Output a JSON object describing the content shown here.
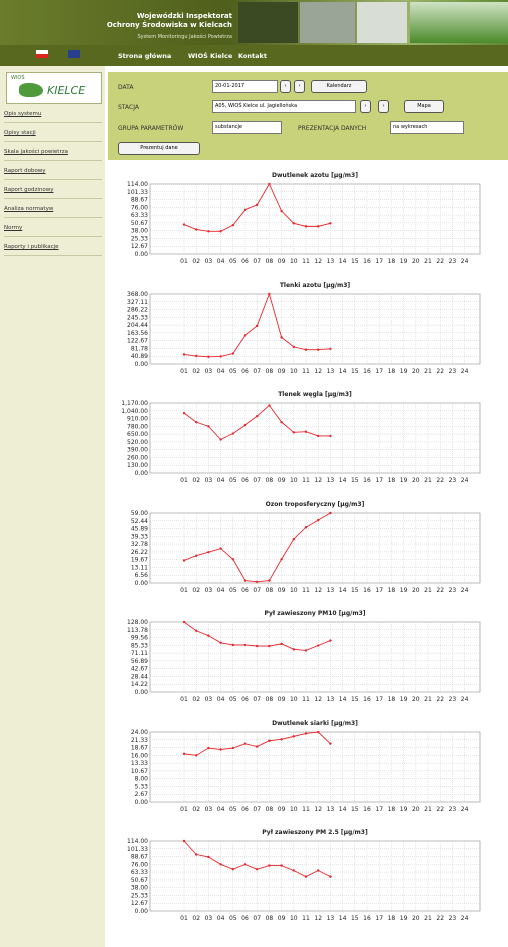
{
  "header": {
    "line1": "Wojewódzki Inspektorat",
    "line2": "Ochrony Środowiska w Kielcach",
    "line3": "System Monitoringu Jakości Powietrza"
  },
  "nav": [
    "Strona główna",
    "WIOŚ Kielce",
    "Kontakt"
  ],
  "logo": {
    "small": "WIOŚ",
    "big": "KIELCE"
  },
  "sidebar": [
    "Opis systemu",
    "Opisy stacji",
    "Skala jakości powietrza",
    "Raport dobowy",
    "Raport godzinowy",
    "Analiza normatyw",
    "Normy",
    "Raporty i publikacje"
  ],
  "form": {
    "date_label": "DATA",
    "date_value": "20-01-2017",
    "calendar": "Kalendarz",
    "station_label": "STACJA",
    "station_value": "A05, WIOŚ Kielce ul. Jagiellońska",
    "map": "Mapa",
    "group_label": "GRUPA PARAMETRÓW",
    "group_value": "substancje",
    "presentation_label": "PREZENTACJA DANYCH",
    "presentation_value": "na wykresach",
    "submit": "Prezentuj dane"
  },
  "chart_data": [
    {
      "type": "line",
      "title": "Dwutlenek azotu [µg/m3]",
      "color": "#e8262c",
      "grid": true,
      "categories": [
        "01",
        "02",
        "03",
        "04",
        "05",
        "06",
        "07",
        "08",
        "09",
        "10",
        "11",
        "12",
        "13",
        "14",
        "15",
        "16",
        "17",
        "18",
        "19",
        "20",
        "21",
        "22",
        "23",
        "24"
      ],
      "values": [
        48,
        40,
        37,
        37,
        47,
        72,
        80,
        114,
        70,
        50,
        45,
        45,
        50,
        null,
        null,
        null,
        null,
        null,
        null,
        null,
        null,
        null,
        null,
        null
      ],
      "ylim": [
        0,
        114
      ],
      "yticks": [
        {
          "value": 0,
          "label": "0.00"
        },
        {
          "value": 12.67,
          "label": "12.67"
        },
        {
          "value": 25.33,
          "label": "25.33"
        },
        {
          "value": 38,
          "label": "38.00"
        },
        {
          "value": 50.67,
          "label": "50.67"
        },
        {
          "value": 63.33,
          "label": "63.33"
        },
        {
          "value": 76,
          "label": "76.00"
        },
        {
          "value": 88.67,
          "label": "88.67"
        },
        {
          "value": 101.33,
          "label": "101.33"
        },
        {
          "value": 114,
          "label": "114.00"
        }
      ]
    },
    {
      "type": "line",
      "title": "Tlenki azotu [µg/m3]",
      "color": "#e8262c",
      "grid": true,
      "categories": [
        "01",
        "02",
        "03",
        "04",
        "05",
        "06",
        "07",
        "08",
        "09",
        "10",
        "11",
        "12",
        "13",
        "14",
        "15",
        "16",
        "17",
        "18",
        "19",
        "20",
        "21",
        "22",
        "23",
        "24"
      ],
      "values": [
        50,
        42,
        38,
        40,
        55,
        150,
        200,
        368,
        140,
        90,
        75,
        75,
        80,
        null,
        null,
        null,
        null,
        null,
        null,
        null,
        null,
        null,
        null,
        null
      ],
      "ylim": [
        0,
        368
      ],
      "yticks": [
        {
          "value": 0,
          "label": "0.00"
        },
        {
          "value": 40.89,
          "label": "40.89"
        },
        {
          "value": 81.78,
          "label": "81.78"
        },
        {
          "value": 122.67,
          "label": "122.67"
        },
        {
          "value": 163.56,
          "label": "163.56"
        },
        {
          "value": 204.44,
          "label": "204.44"
        },
        {
          "value": 245.33,
          "label": "245.33"
        },
        {
          "value": 286.22,
          "label": "286.22"
        },
        {
          "value": 327.11,
          "label": "327.11"
        },
        {
          "value": 368,
          "label": "368.00"
        }
      ]
    },
    {
      "type": "line",
      "title": "Tlenek węgla [µg/m3]",
      "color": "#e8262c",
      "grid": true,
      "categories": [
        "01",
        "02",
        "03",
        "04",
        "05",
        "06",
        "07",
        "08",
        "09",
        "10",
        "11",
        "12",
        "13",
        "14",
        "15",
        "16",
        "17",
        "18",
        "19",
        "20",
        "21",
        "22",
        "23",
        "24"
      ],
      "values": [
        1000,
        850,
        780,
        560,
        660,
        800,
        950,
        1130,
        850,
        680,
        690,
        620,
        620,
        null,
        null,
        null,
        null,
        null,
        null,
        null,
        null,
        null,
        null,
        null
      ],
      "ylim": [
        0,
        1170
      ],
      "yticks": [
        {
          "value": 0,
          "label": "0.00"
        },
        {
          "value": 130,
          "label": "130.00"
        },
        {
          "value": 260,
          "label": "260.00"
        },
        {
          "value": 390,
          "label": "390.00"
        },
        {
          "value": 520,
          "label": "520.00"
        },
        {
          "value": 650,
          "label": "650.00"
        },
        {
          "value": 780,
          "label": "780.00"
        },
        {
          "value": 910,
          "label": "910.00"
        },
        {
          "value": 1040,
          "label": "1,040.00"
        },
        {
          "value": 1170,
          "label": "1,170.00"
        }
      ]
    },
    {
      "type": "line",
      "title": "Ozon troposferyczny [µg/m3]",
      "color": "#e8262c",
      "grid": true,
      "categories": [
        "01",
        "02",
        "03",
        "04",
        "05",
        "06",
        "07",
        "08",
        "09",
        "10",
        "11",
        "12",
        "13",
        "14",
        "15",
        "16",
        "17",
        "18",
        "19",
        "20",
        "21",
        "22",
        "23",
        "24"
      ],
      "values": [
        19,
        23,
        26,
        29,
        20,
        2,
        1,
        2,
        20,
        37,
        47,
        53,
        59,
        null,
        null,
        null,
        null,
        null,
        null,
        null,
        null,
        null,
        null,
        null
      ],
      "ylim": [
        0,
        59
      ],
      "yticks": [
        {
          "value": 0,
          "label": "0.00"
        },
        {
          "value": 6.56,
          "label": "6.56"
        },
        {
          "value": 13.11,
          "label": "13.11"
        },
        {
          "value": 19.67,
          "label": "19.67"
        },
        {
          "value": 26.22,
          "label": "26.22"
        },
        {
          "value": 32.78,
          "label": "32.78"
        },
        {
          "value": 39.33,
          "label": "39.33"
        },
        {
          "value": 45.89,
          "label": "45.89"
        },
        {
          "value": 52.44,
          "label": "52.44"
        },
        {
          "value": 59,
          "label": "59.00"
        }
      ]
    },
    {
      "type": "line",
      "title": "Pył zawieszony PM10 [µg/m3]",
      "color": "#e8262c",
      "grid": true,
      "categories": [
        "01",
        "02",
        "03",
        "04",
        "05",
        "06",
        "07",
        "08",
        "09",
        "10",
        "11",
        "12",
        "13",
        "14",
        "15",
        "16",
        "17",
        "18",
        "19",
        "20",
        "21",
        "22",
        "23",
        "24"
      ],
      "values": [
        128,
        112,
        103,
        90,
        86,
        86,
        84,
        84,
        88,
        78,
        76,
        85,
        94,
        null,
        null,
        null,
        null,
        null,
        null,
        null,
        null,
        null,
        null,
        null
      ],
      "ylim": [
        0,
        128
      ],
      "yticks": [
        {
          "value": 0,
          "label": "0.00"
        },
        {
          "value": 14.22,
          "label": "14.22"
        },
        {
          "value": 28.44,
          "label": "28.44"
        },
        {
          "value": 42.67,
          "label": "42.67"
        },
        {
          "value": 56.89,
          "label": "56.89"
        },
        {
          "value": 71.11,
          "label": "71.11"
        },
        {
          "value": 85.33,
          "label": "85.33"
        },
        {
          "value": 99.56,
          "label": "99.56"
        },
        {
          "value": 113.78,
          "label": "113.78"
        },
        {
          "value": 128,
          "label": "128.00"
        }
      ]
    },
    {
      "type": "line",
      "title": "Dwutlenek siarki [µg/m3]",
      "color": "#e8262c",
      "grid": true,
      "categories": [
        "01",
        "02",
        "03",
        "04",
        "05",
        "06",
        "07",
        "08",
        "09",
        "10",
        "11",
        "12",
        "13",
        "14",
        "15",
        "16",
        "17",
        "18",
        "19",
        "20",
        "21",
        "22",
        "23",
        "24"
      ],
      "values": [
        16.5,
        16,
        18.5,
        18,
        18.5,
        20,
        19,
        21,
        21.5,
        22.5,
        23.5,
        24,
        20,
        null,
        null,
        null,
        null,
        null,
        null,
        null,
        null,
        null,
        null,
        null
      ],
      "ylim": [
        0,
        24
      ],
      "yticks": [
        {
          "value": 0,
          "label": "0.00"
        },
        {
          "value": 2.67,
          "label": "2.67"
        },
        {
          "value": 5.33,
          "label": "5.33"
        },
        {
          "value": 8,
          "label": "8.00"
        },
        {
          "value": 10.67,
          "label": "10.67"
        },
        {
          "value": 13.33,
          "label": "13.33"
        },
        {
          "value": 16,
          "label": "16.00"
        },
        {
          "value": 18.67,
          "label": "18.67"
        },
        {
          "value": 21.33,
          "label": "21.33"
        },
        {
          "value": 24,
          "label": "24.00"
        }
      ]
    },
    {
      "type": "line",
      "title": "Pył zawieszony PM 2.5 [µg/m3]",
      "color": "#e8262c",
      "grid": true,
      "categories": [
        "01",
        "02",
        "03",
        "04",
        "05",
        "06",
        "07",
        "08",
        "09",
        "10",
        "11",
        "12",
        "13",
        "14",
        "15",
        "16",
        "17",
        "18",
        "19",
        "20",
        "21",
        "22",
        "23",
        "24"
      ],
      "values": [
        114,
        92,
        88,
        76,
        68,
        76,
        68,
        74,
        74,
        66,
        56,
        66,
        56,
        null,
        null,
        null,
        null,
        null,
        null,
        null,
        null,
        null,
        null,
        null
      ],
      "ylim": [
        0,
        114
      ],
      "yticks": [
        {
          "value": 0,
          "label": "0.00"
        },
        {
          "value": 12.67,
          "label": "12.67"
        },
        {
          "value": 25.33,
          "label": "25.33"
        },
        {
          "value": 38,
          "label": "38.00"
        },
        {
          "value": 50.67,
          "label": "50.67"
        },
        {
          "value": 63.33,
          "label": "63.33"
        },
        {
          "value": 76,
          "label": "76.00"
        },
        {
          "value": 88.67,
          "label": "88.67"
        },
        {
          "value": 101.33,
          "label": "101.33"
        },
        {
          "value": 114,
          "label": "114.00"
        }
      ]
    }
  ]
}
